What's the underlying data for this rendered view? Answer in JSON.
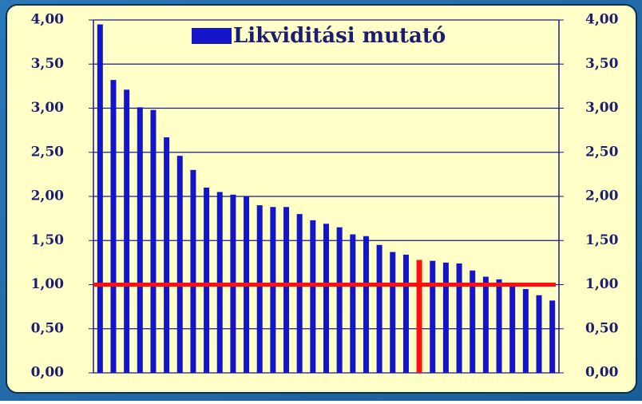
{
  "chart_data": {
    "type": "bar",
    "series": [
      {
        "name": "Likviditási mutató",
        "color": "#1414c8",
        "values": [
          3.95,
          3.32,
          3.21,
          3.01,
          2.98,
          2.67,
          2.46,
          2.3,
          2.1,
          2.05,
          2.02,
          2.0,
          1.9,
          1.88,
          1.88,
          1.8,
          1.73,
          1.69,
          1.65,
          1.57,
          1.55,
          1.45,
          1.37,
          1.34,
          1.28,
          1.27,
          1.25,
          1.24,
          1.16,
          1.09,
          1.06,
          1.01,
          0.95,
          0.88,
          0.82
        ]
      }
    ],
    "categories": [
      null,
      null,
      null,
      null,
      null,
      null,
      null,
      null,
      null,
      null,
      null,
      null,
      null,
      null,
      null,
      null,
      null,
      null,
      null,
      null,
      null,
      null,
      null,
      null,
      null,
      null,
      null,
      null,
      null,
      null,
      null,
      null,
      null,
      null,
      null
    ],
    "highlight_index": 24,
    "highlight_color": "#ff1010",
    "reference_line": 1,
    "reference_color": "#ff1010",
    "ylim": [
      0,
      4
    ],
    "yticks": [
      {
        "value": 0,
        "label": "0,00"
      },
      {
        "value": 0.5,
        "label": "0,50"
      },
      {
        "value": 1,
        "label": "1,00"
      },
      {
        "value": 1.5,
        "label": "1,50"
      },
      {
        "value": 2,
        "label": "2,00"
      },
      {
        "value": 2.5,
        "label": "2,50"
      },
      {
        "value": 3,
        "label": "3,00"
      },
      {
        "value": 3.5,
        "label": "3,50"
      },
      {
        "value": 4,
        "label": "4,00"
      }
    ],
    "y2lim": [
      0,
      4
    ],
    "y2ticks": [
      {
        "value": 0,
        "label": "0,00"
      },
      {
        "value": 0.5,
        "label": "0,50"
      },
      {
        "value": 1,
        "label": "1,00"
      },
      {
        "value": 1.5,
        "label": "1,50"
      },
      {
        "value": 2,
        "label": "2,00"
      },
      {
        "value": 2.5,
        "label": "2,50"
      },
      {
        "value": 3,
        "label": "3,00"
      },
      {
        "value": 3.5,
        "label": "3,50"
      },
      {
        "value": 4,
        "label": "4,00"
      }
    ],
    "grid": true,
    "legend": "top"
  }
}
